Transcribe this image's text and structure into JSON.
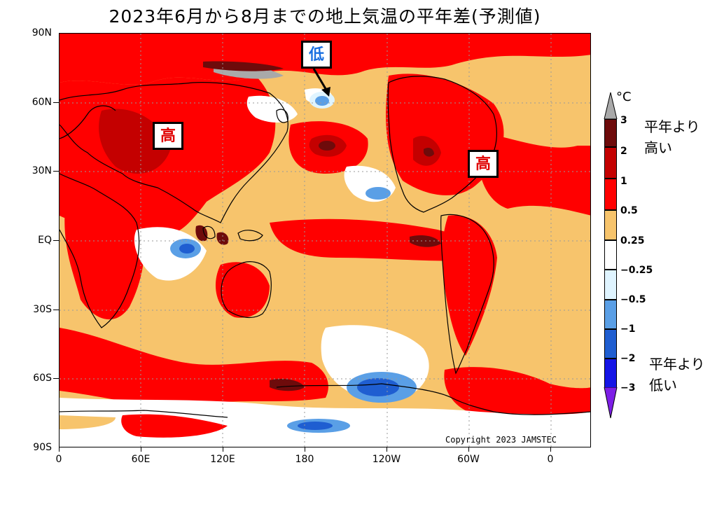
{
  "title": "2023年6月から8月までの地上気温の平年差(予測値)",
  "y_axis_labels": [
    "90N",
    "60N",
    "30N",
    "EQ",
    "30S",
    "60S",
    "90S"
  ],
  "x_axis_labels": [
    "0",
    "60E",
    "120E",
    "180",
    "120W",
    "60W",
    "0"
  ],
  "annotations": {
    "high_label": "高",
    "low_label": "低"
  },
  "copyright": "Copyright 2023 JAMSTEC",
  "colorbar": {
    "unit": "°C",
    "tick_labels": [
      "3",
      "2",
      "1",
      "0.5",
      "0.25",
      "−0.25",
      "−0.5",
      "−1",
      "−2",
      "−3"
    ],
    "colors": [
      "#a9a9a9",
      "#6e0b0b",
      "#c40000",
      "#ff0000",
      "#f7c46c",
      "#ffffff",
      "#dff4ff",
      "#5a9fe6",
      "#1f5ed1",
      "#1515e6",
      "#7d1ee6"
    ]
  },
  "legend": {
    "above_line1": "平年より",
    "above_line2": "高い",
    "below_line1": "平年より",
    "below_line2": "低い"
  }
}
